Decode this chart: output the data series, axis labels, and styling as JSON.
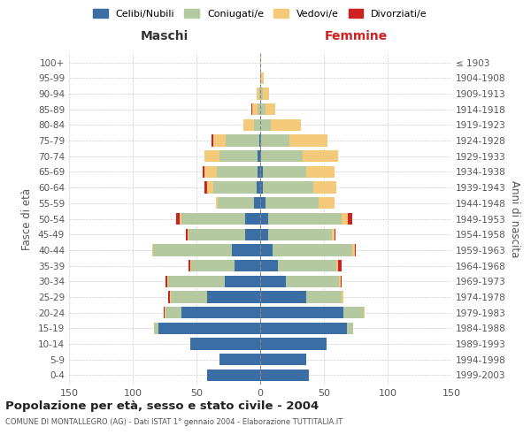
{
  "age_groups": [
    "0-4",
    "5-9",
    "10-14",
    "15-19",
    "20-24",
    "25-29",
    "30-34",
    "35-39",
    "40-44",
    "45-49",
    "50-54",
    "55-59",
    "60-64",
    "65-69",
    "70-74",
    "75-79",
    "80-84",
    "85-89",
    "90-94",
    "95-99",
    "100+"
  ],
  "birth_years": [
    "1999-2003",
    "1994-1998",
    "1989-1993",
    "1984-1988",
    "1979-1983",
    "1974-1978",
    "1969-1973",
    "1964-1968",
    "1959-1963",
    "1954-1958",
    "1949-1953",
    "1944-1948",
    "1939-1943",
    "1934-1938",
    "1929-1933",
    "1924-1928",
    "1919-1923",
    "1914-1918",
    "1909-1913",
    "1904-1908",
    "≤ 1903"
  ],
  "colors": {
    "celibi": "#3a6ea5",
    "coniugati": "#b5c9a0",
    "vedovi": "#f5c97a",
    "divorziati": "#cc2222"
  },
  "maschi": {
    "celibi": [
      42,
      32,
      55,
      80,
      62,
      42,
      28,
      20,
      22,
      12,
      12,
      5,
      3,
      2,
      2,
      1,
      0,
      0,
      0,
      0,
      0
    ],
    "coniugati": [
      0,
      0,
      0,
      3,
      12,
      28,
      44,
      34,
      62,
      44,
      50,
      28,
      34,
      32,
      30,
      26,
      5,
      2,
      1,
      0,
      0
    ],
    "vedovi": [
      0,
      0,
      0,
      0,
      1,
      1,
      1,
      1,
      1,
      1,
      1,
      2,
      5,
      10,
      12,
      10,
      8,
      4,
      2,
      0,
      0
    ],
    "divorziati": [
      0,
      0,
      0,
      0,
      1,
      1,
      1,
      1,
      0,
      1,
      3,
      0,
      2,
      1,
      0,
      1,
      0,
      1,
      0,
      0,
      0
    ]
  },
  "femmine": {
    "celibi": [
      38,
      36,
      52,
      68,
      65,
      36,
      20,
      14,
      10,
      6,
      6,
      4,
      2,
      2,
      1,
      1,
      0,
      0,
      0,
      0,
      0
    ],
    "coniugati": [
      0,
      0,
      0,
      5,
      16,
      28,
      42,
      46,
      62,
      50,
      58,
      42,
      40,
      34,
      32,
      22,
      8,
      4,
      2,
      1,
      0
    ],
    "vedovi": [
      0,
      0,
      0,
      0,
      1,
      1,
      1,
      1,
      2,
      2,
      5,
      12,
      18,
      22,
      28,
      30,
      24,
      8,
      5,
      2,
      1
    ],
    "divorziati": [
      0,
      0,
      0,
      0,
      0,
      0,
      1,
      3,
      1,
      1,
      3,
      0,
      0,
      0,
      0,
      0,
      0,
      0,
      0,
      0,
      0
    ]
  },
  "title": "Popolazione per età, sesso e stato civile - 2004",
  "subtitle": "COMUNE DI MONTALLEGRO (AG) - Dati ISTAT 1° gennaio 2004 - Elaborazione TUTTITALIA.IT",
  "xlabel_left": "Maschi",
  "xlabel_right": "Femmine",
  "ylabel_left": "Fasce di età",
  "ylabel_right": "Anni di nascita",
  "xlim": 150,
  "legend_labels": [
    "Celibi/Nubili",
    "Coniugati/e",
    "Vedovi/e",
    "Divorziati/e"
  ]
}
